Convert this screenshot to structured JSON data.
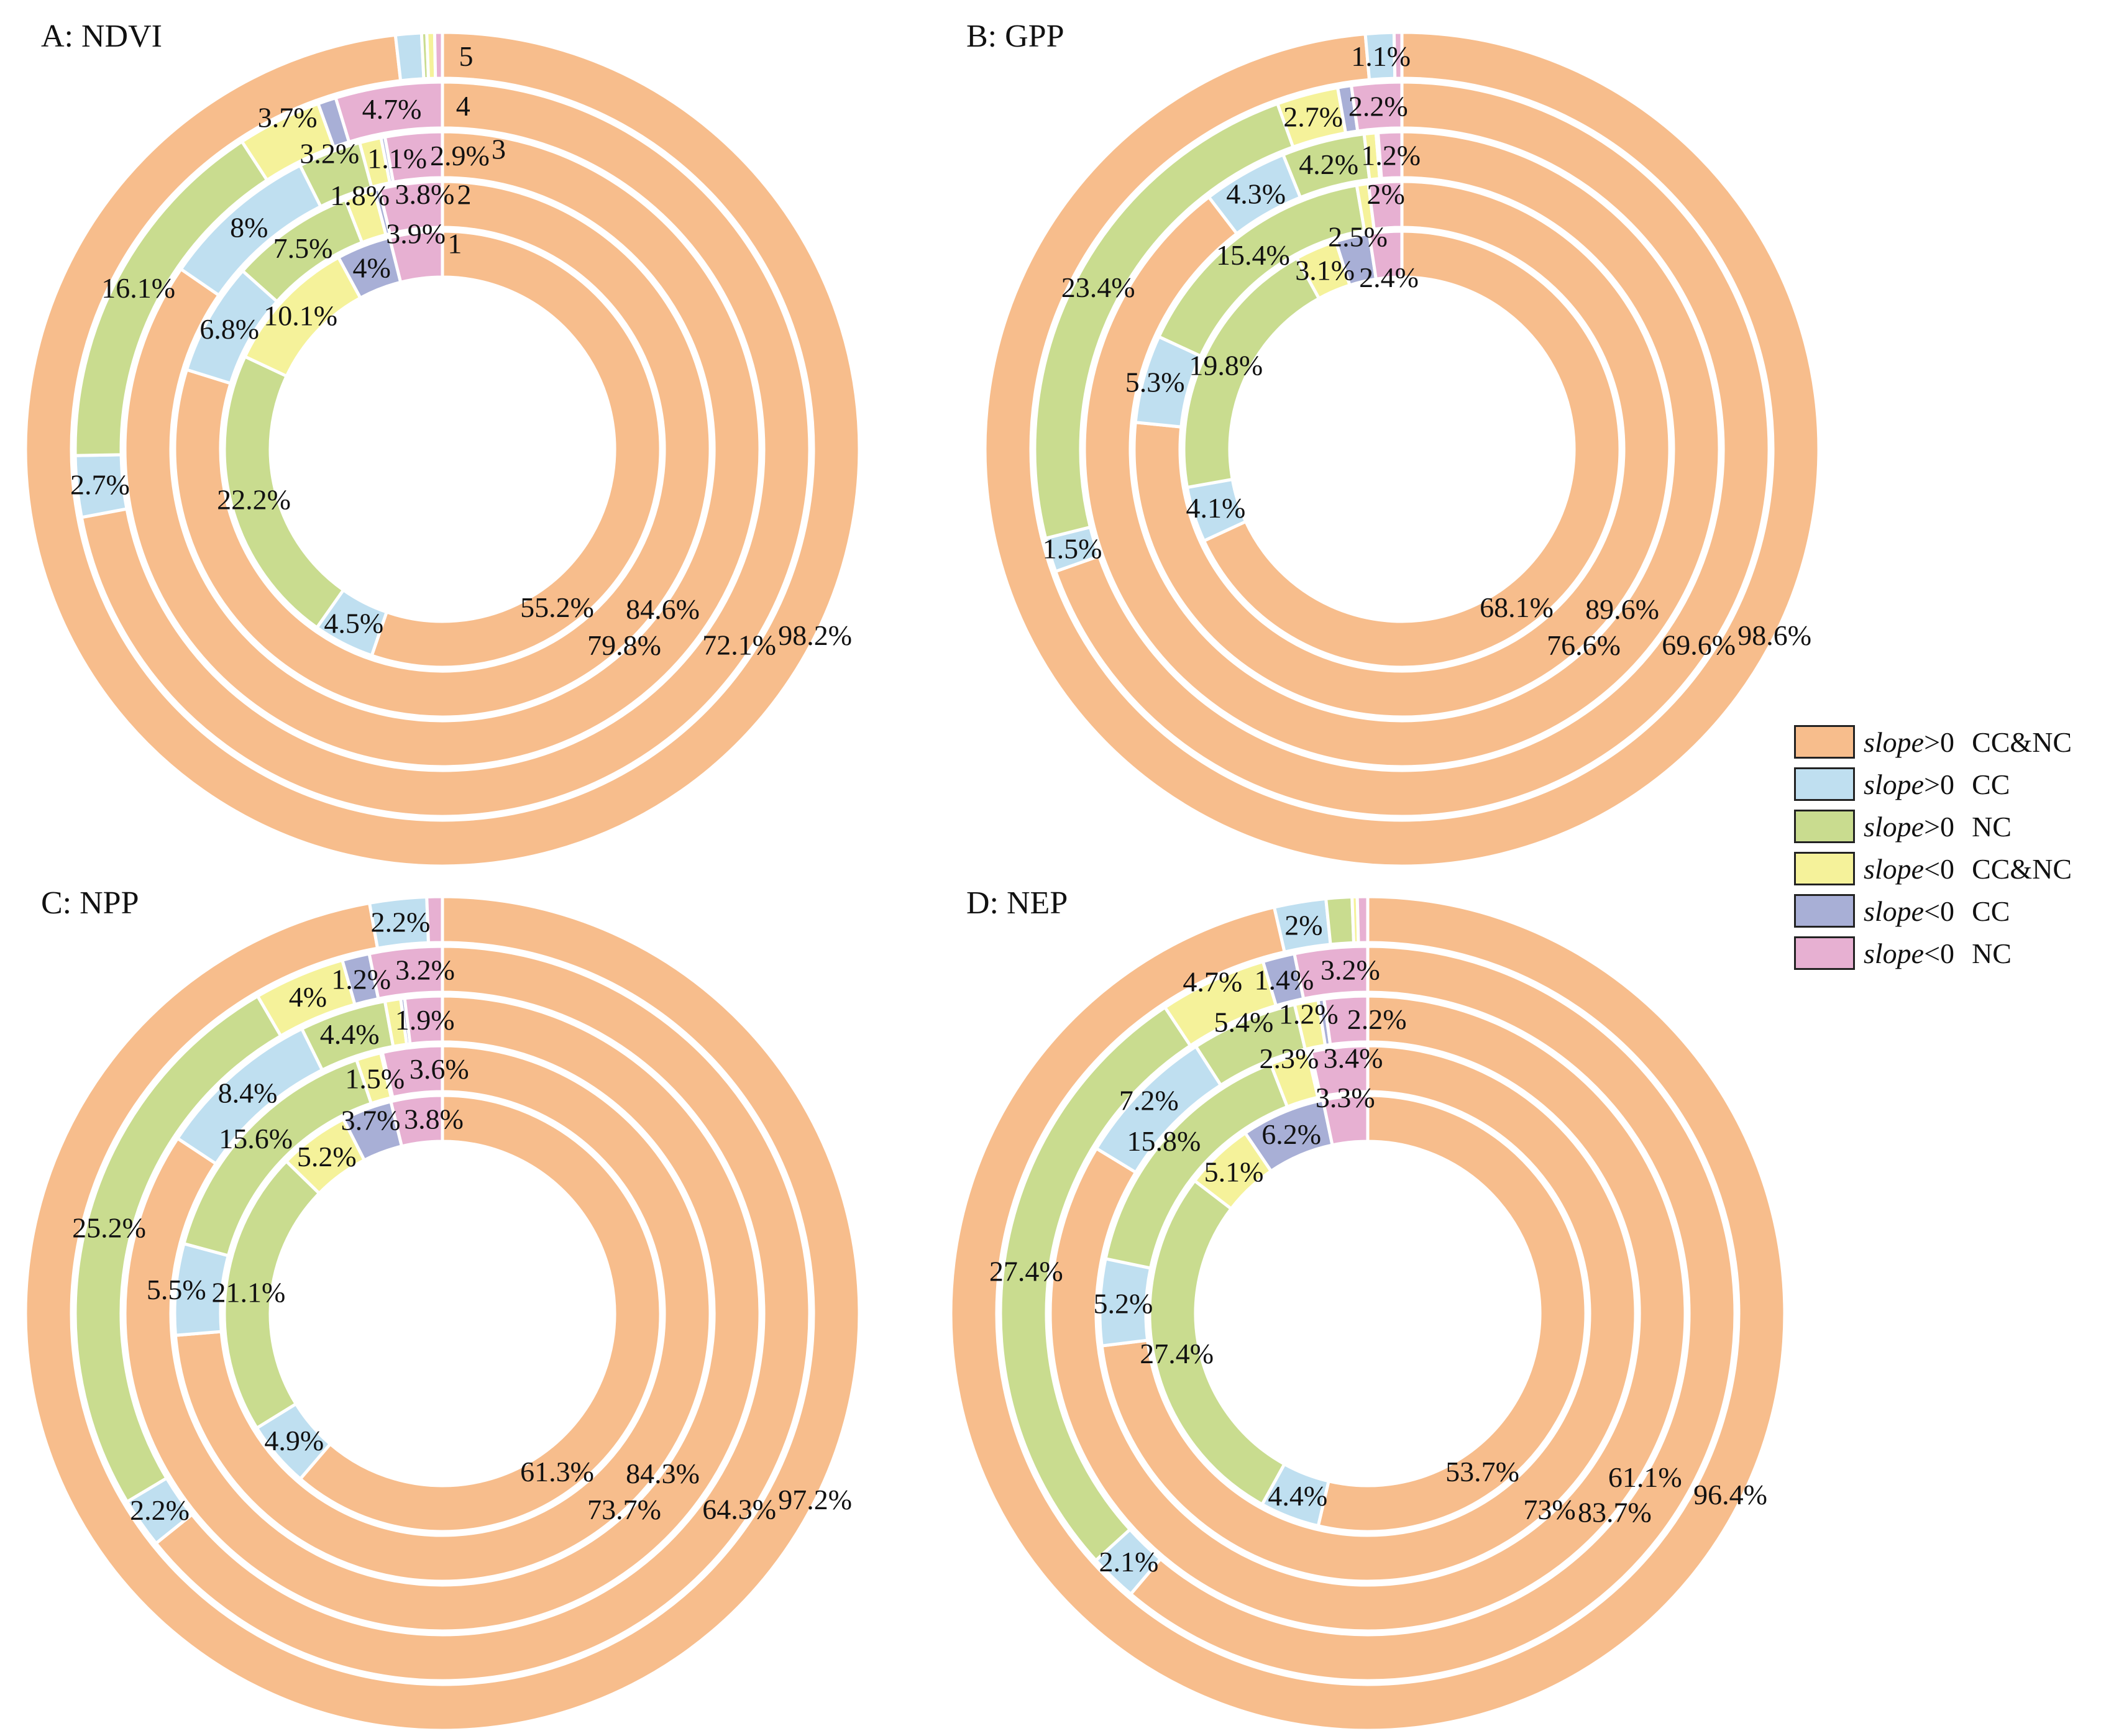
{
  "chart_data": {
    "type": "multi-ring donut",
    "categories": [
      "slope>0 CC&NC",
      "slope>0 CC",
      "slope>0 NC",
      "slope<0 CC&NC",
      "slope<0 CC",
      "slope<0 NC"
    ],
    "colors": [
      "#f7bd8c",
      "#bfdff0",
      "#c9dc8f",
      "#f5f29a",
      "#a8afd6",
      "#e7b0d2"
    ],
    "legend": [
      {
        "var": "slope",
        "op": ">0",
        "group": "CC&NC"
      },
      {
        "var": "slope",
        "op": ">0",
        "group": "CC"
      },
      {
        "var": "slope",
        "op": ">0",
        "group": "NC"
      },
      {
        "var": "slope",
        "op": "<0",
        "group": "CC&NC"
      },
      {
        "var": "slope",
        "op": "<0",
        "group": "CC"
      },
      {
        "var": "slope",
        "op": "<0",
        "group": "NC"
      }
    ],
    "legend_position": "right",
    "ring_labels": [
      "1",
      "2",
      "3",
      "4",
      "5"
    ],
    "panels": [
      {
        "title": "A: NDVI",
        "show_ring_labels": true,
        "rings": [
          [
            55.2,
            4.5,
            22.2,
            10.1,
            4,
            3.9
          ],
          [
            79.8,
            6.8,
            7.5,
            1.8,
            0.3,
            3.8
          ],
          [
            84.6,
            8,
            3.2,
            1.1,
            0.2,
            2.9
          ],
          [
            72.1,
            2.7,
            16.1,
            3.7,
            0.8,
            4.7
          ],
          [
            98.2,
            1.0,
            0.2,
            0.3,
            0,
            0.3
          ]
        ]
      },
      {
        "title": "B: GPP",
        "show_ring_labels": false,
        "rings": [
          [
            68.1,
            4.1,
            19.8,
            3.1,
            2.5,
            2.4
          ],
          [
            76.6,
            5.3,
            15.4,
            0.7,
            0,
            2
          ],
          [
            89.6,
            4.3,
            4.2,
            0.6,
            0.1,
            1.2
          ],
          [
            69.6,
            1.5,
            23.4,
            2.7,
            0.6,
            2.2
          ],
          [
            98.6,
            1.1,
            0,
            0,
            0,
            0.3
          ]
        ]
      },
      {
        "title": "C: NPP",
        "show_ring_labels": false,
        "rings": [
          [
            61.3,
            4.9,
            21.1,
            5.2,
            3.7,
            3.8
          ],
          [
            73.7,
            5.5,
            15.6,
            1.5,
            0.1,
            3.6
          ],
          [
            84.3,
            8.4,
            4.4,
            0.8,
            0.2,
            1.9
          ],
          [
            64.3,
            2.2,
            25.2,
            4,
            1.2,
            3.2
          ],
          [
            97.2,
            2.2,
            0,
            0,
            0,
            0.6
          ]
        ]
      },
      {
        "title": "D: NEP",
        "show_ring_labels": false,
        "rings": [
          [
            53.7,
            4.4,
            27.4,
            5.1,
            6.2,
            3.3
          ],
          [
            73,
            5.2,
            15.8,
            2.3,
            0.2,
            3.4
          ],
          [
            83.7,
            7.2,
            5.4,
            1.2,
            0.3,
            2.2
          ],
          [
            61.1,
            2.1,
            27.4,
            4.7,
            1.4,
            3.2
          ],
          [
            96.4,
            2,
            1.0,
            0.2,
            0,
            0.4
          ]
        ]
      }
    ]
  }
}
